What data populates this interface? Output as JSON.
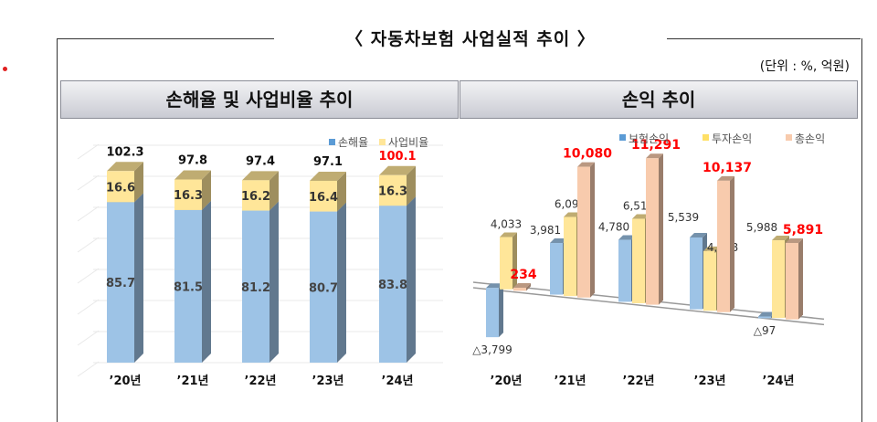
{
  "title": "〈 자동차보험 사업실적 추이 〉",
  "unit": "(단위 : %, 억원)",
  "colors": {
    "blue": "#9dc3e6",
    "yellow": "#ffe699",
    "peach": "#f8cbad",
    "highlight": "#ff0000"
  },
  "chart_data": [
    {
      "type": "bar",
      "stacked": true,
      "title": "손해율 및 사업비율 추이",
      "categories": [
        "’20년",
        "’21년",
        "’22년",
        "’23년",
        "’24년"
      ],
      "series": [
        {
          "name": "손해율",
          "values": [
            85.7,
            81.5,
            81.2,
            80.7,
            83.8
          ]
        },
        {
          "name": "사업비율",
          "values": [
            16.6,
            16.3,
            16.2,
            16.4,
            16.3
          ]
        }
      ],
      "totals": [
        "102.3",
        "97.8",
        "97.4",
        "97.1",
        "100.1"
      ],
      "legend": "top-right",
      "grid": true,
      "ylim": [
        0,
        110
      ]
    },
    {
      "type": "bar",
      "title": "손익 추이",
      "categories": [
        "’20년",
        "’21년",
        "’22년",
        "’23년",
        "’24년"
      ],
      "series": [
        {
          "name": "보험손익",
          "values": [
            -3799,
            3981,
            4780,
            5539,
            -97
          ],
          "labels": [
            "△3,799",
            "3,981",
            "4,780",
            "5,539",
            "△97"
          ]
        },
        {
          "name": "투자손익",
          "values": [
            4033,
            6099,
            6511,
            4598,
            5988
          ],
          "labels": [
            "4,033",
            "6,099",
            "6,511",
            "4,598",
            "5,988"
          ]
        },
        {
          "name": "총손익",
          "values": [
            234,
            10080,
            11291,
            10137,
            5891
          ],
          "labels": [
            "234",
            "10,080",
            "11,291",
            "10,137",
            "5,891"
          ]
        }
      ],
      "legend": "top-right",
      "grid": false
    }
  ]
}
